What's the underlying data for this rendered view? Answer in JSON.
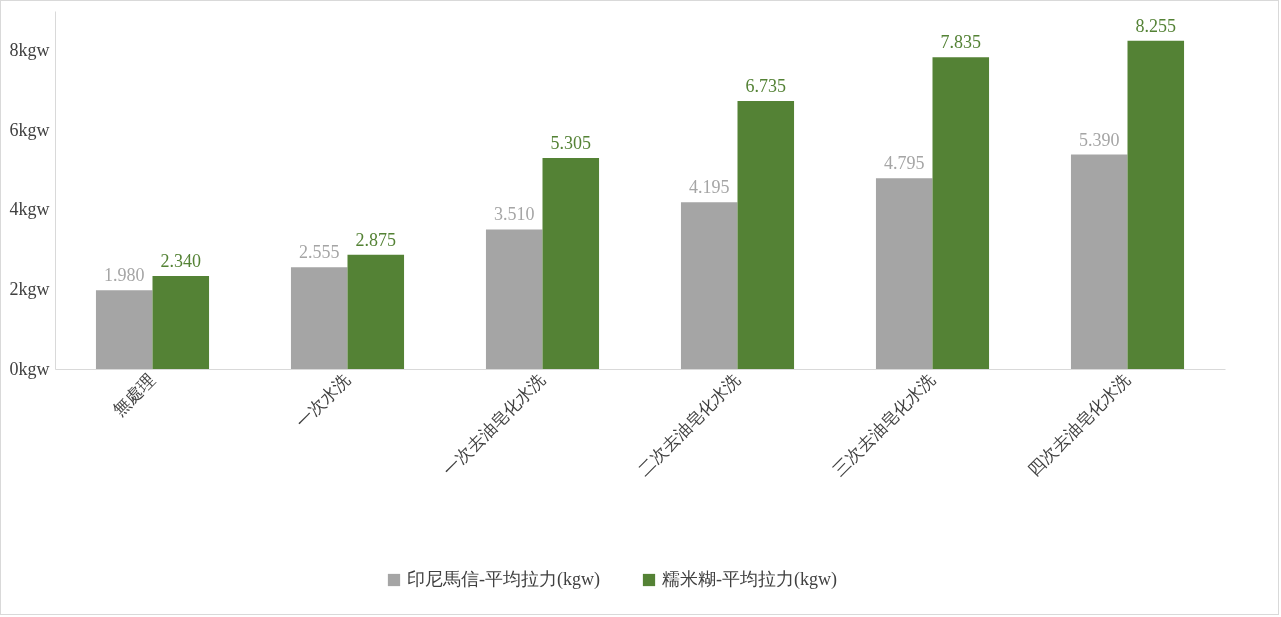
{
  "chart_data": {
    "type": "bar",
    "categories": [
      "無處理",
      "一次水洗",
      "一次去油皂化水洗",
      "二次去油皂化水洗",
      "三次去油皂化水洗",
      "四次去油皂化水洗"
    ],
    "series": [
      {
        "name": "印尼馬信-平均拉力(kgw)",
        "color": "#a5a5a5",
        "values": [
          1.98,
          2.555,
          3.51,
          4.195,
          4.795,
          5.39
        ],
        "value_labels": [
          "1.980",
          "2.555",
          "3.510",
          "4.195",
          "4.795",
          "5.390"
        ]
      },
      {
        "name": "糯米糊-平均拉力(kgw)",
        "color": "#548235",
        "values": [
          2.34,
          2.875,
          5.305,
          6.735,
          7.835,
          8.255
        ],
        "value_labels": [
          "2.340",
          "2.875",
          "5.305",
          "6.735",
          "7.835",
          "8.255"
        ]
      }
    ],
    "ylim": [
      0,
      9
    ],
    "yticks": [
      {
        "value": 0,
        "label": "0kgw"
      },
      {
        "value": 2,
        "label": "2kgw"
      },
      {
        "value": 4,
        "label": "4kgw"
      },
      {
        "value": 6,
        "label": "6kgw"
      },
      {
        "value": 8,
        "label": "8kgw"
      }
    ],
    "grid": false,
    "legend": "bottom"
  }
}
